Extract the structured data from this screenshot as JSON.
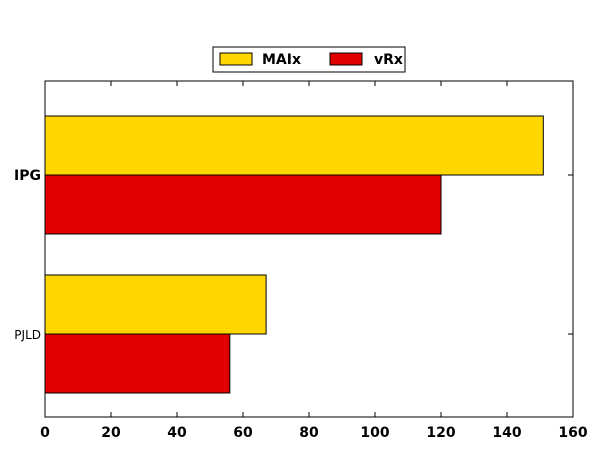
{
  "chart_data": {
    "type": "bar",
    "orientation": "horizontal",
    "categories": [
      "IPG",
      "PJLD"
    ],
    "series": [
      {
        "name": "MAIx",
        "values": [
          151,
          67
        ],
        "color": "#ffd700"
      },
      {
        "name": "vRx",
        "values": [
          120,
          56
        ],
        "color": "#e00000"
      }
    ],
    "xlim": [
      0,
      160
    ],
    "xticks": [
      "0",
      "20",
      "40",
      "60",
      "80",
      "100",
      "120",
      "140",
      "160"
    ],
    "legend_position": "top-center",
    "grid": false,
    "title": "",
    "xlabel": "",
    "ylabel": ""
  }
}
